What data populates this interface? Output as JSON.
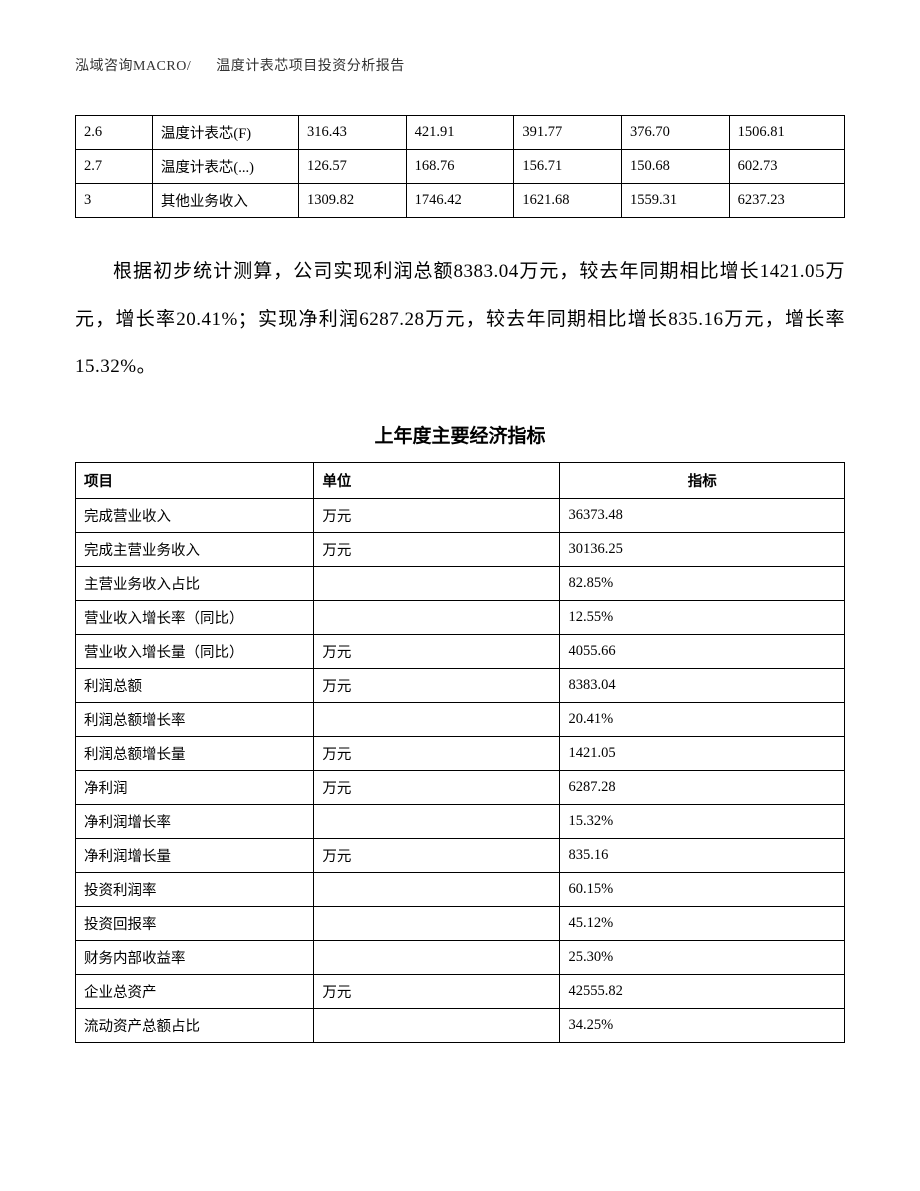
{
  "header": {
    "company": "泓域咨询MACRO/",
    "title": "温度计表芯项目投资分析报告"
  },
  "table1": {
    "type": "table",
    "border_color": "#000000",
    "background_color": "#ffffff",
    "font_size_pt": 11,
    "column_widths_pct": [
      10,
      19,
      14,
      14,
      14,
      14,
      15
    ],
    "rows": [
      [
        "2.6",
        "温度计表芯(F)",
        "316.43",
        "421.91",
        "391.77",
        "376.70",
        "1506.81"
      ],
      [
        "2.7",
        "温度计表芯(...)",
        "126.57",
        "168.76",
        "156.71",
        "150.68",
        "602.73"
      ],
      [
        "3",
        "其他业务收入",
        "1309.82",
        "1746.42",
        "1621.68",
        "1559.31",
        "6237.23"
      ]
    ]
  },
  "paragraph": {
    "text": "根据初步统计测算，公司实现利润总额8383.04万元，较去年同期相比增长1421.05万元，增长率20.41%；实现净利润6287.28万元，较去年同期相比增长835.16万元，增长率15.32%。",
    "font_size_pt": 14,
    "line_height": 2.5,
    "text_indent_em": 2
  },
  "section_title": "上年度主要经济指标",
  "table2": {
    "type": "table",
    "border_color": "#000000",
    "background_color": "#ffffff",
    "font_size_pt": 11,
    "column_widths_pct": [
      31,
      32,
      37
    ],
    "columns": [
      "项目",
      "单位",
      "指标"
    ],
    "header_alignment": [
      "left",
      "left",
      "center"
    ],
    "header_font_weight": "bold",
    "rows": [
      [
        "完成营业收入",
        "万元",
        "36373.48"
      ],
      [
        "完成主营业务收入",
        "万元",
        "30136.25"
      ],
      [
        "主营业务收入占比",
        "",
        "82.85%"
      ],
      [
        "营业收入增长率（同比）",
        "",
        "12.55%"
      ],
      [
        "营业收入增长量（同比）",
        "万元",
        "4055.66"
      ],
      [
        "利润总额",
        "万元",
        "8383.04"
      ],
      [
        "利润总额增长率",
        "",
        "20.41%"
      ],
      [
        "利润总额增长量",
        "万元",
        "1421.05"
      ],
      [
        "净利润",
        "万元",
        "6287.28"
      ],
      [
        "净利润增长率",
        "",
        "15.32%"
      ],
      [
        "净利润增长量",
        "万元",
        "835.16"
      ],
      [
        "投资利润率",
        "",
        "60.15%"
      ],
      [
        "投资回报率",
        "",
        "45.12%"
      ],
      [
        "财务内部收益率",
        "",
        "25.30%"
      ],
      [
        "企业总资产",
        "万元",
        "42555.82"
      ],
      [
        "流动资产总额占比",
        "",
        "34.25%"
      ]
    ]
  }
}
